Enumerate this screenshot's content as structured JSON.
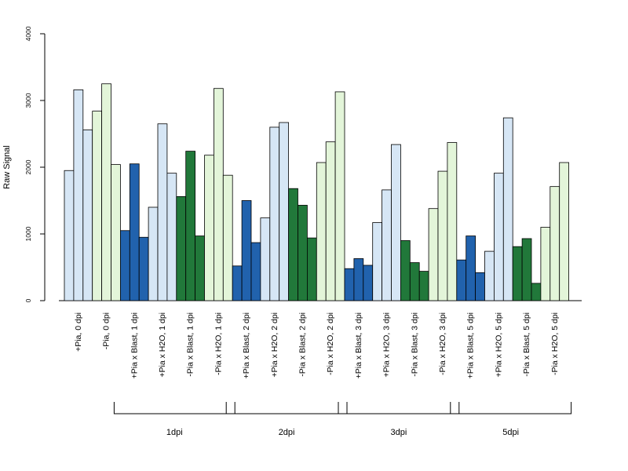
{
  "chart_data": {
    "type": "bar",
    "title": "",
    "xlabel": "",
    "ylabel": "Raw Signal",
    "ylim": [
      0,
      4000
    ],
    "yticks": [
      0,
      1000,
      2000,
      3000,
      4000
    ],
    "grid": false,
    "legend": "none",
    "colors": {
      "plus_pia_blast": "#2162ad",
      "plus_pia_h2o": "#d6e6f5",
      "minus_pia_blast": "#21783a",
      "minus_pia_h2o": "#e3f5d9"
    },
    "categories": [
      {
        "label": "+Pia, 0 dpi",
        "color": "plus_pia_h2o",
        "values": [
          1950,
          3160,
          2560
        ]
      },
      {
        "label": "-Pia, 0 dpi",
        "color": "minus_pia_h2o",
        "values": [
          2840,
          3250,
          2040
        ]
      },
      {
        "label": "+Pia x Blast, 1 dpi",
        "color": "plus_pia_blast",
        "values": [
          1050,
          2050,
          950
        ]
      },
      {
        "label": "+Pia x H2O, 1 dpi",
        "color": "plus_pia_h2o",
        "values": [
          1400,
          2650,
          1910
        ]
      },
      {
        "label": "-Pia x Blast, 1 dpi",
        "color": "minus_pia_blast",
        "values": [
          1560,
          2240,
          970
        ]
      },
      {
        "label": "-Pia x H2O, 1 dpi",
        "color": "minus_pia_h2o",
        "values": [
          2180,
          3180,
          1880
        ]
      },
      {
        "label": "+Pia x Blast, 2 dpi",
        "color": "plus_pia_blast",
        "values": [
          520,
          1500,
          870
        ]
      },
      {
        "label": "+Pia x H2O, 2 dpi",
        "color": "plus_pia_h2o",
        "values": [
          1240,
          2600,
          2670
        ]
      },
      {
        "label": "-Pia x Blast, 2 dpi",
        "color": "minus_pia_blast",
        "values": [
          1680,
          1430,
          940
        ]
      },
      {
        "label": "-Pia x H2O, 2 dpi",
        "color": "minus_pia_h2o",
        "values": [
          2070,
          2380,
          3130
        ]
      },
      {
        "label": "+Pia x Blast, 3 dpi",
        "color": "plus_pia_blast",
        "values": [
          480,
          630,
          530
        ]
      },
      {
        "label": "+Pia x H2O, 3 dpi",
        "color": "plus_pia_h2o",
        "values": [
          1170,
          1660,
          2340
        ]
      },
      {
        "label": "-Pia x Blast, 3 dpi",
        "color": "minus_pia_blast",
        "values": [
          900,
          570,
          440
        ]
      },
      {
        "label": "-Pia x H2O, 3 dpi",
        "color": "minus_pia_h2o",
        "values": [
          1380,
          1940,
          2370
        ]
      },
      {
        "label": "+Pia x Blast, 5 dpi",
        "color": "plus_pia_blast",
        "values": [
          610,
          970,
          420
        ]
      },
      {
        "label": "+Pia x H2O, 5 dpi",
        "color": "plus_pia_h2o",
        "values": [
          740,
          1910,
          2740
        ]
      },
      {
        "label": "-Pia x Blast, 5 dpi",
        "color": "minus_pia_blast",
        "values": [
          810,
          930,
          260
        ]
      },
      {
        "label": "-Pia x H2O, 5 dpi",
        "color": "minus_pia_h2o",
        "values": [
          1100,
          1710,
          2070
        ]
      }
    ],
    "groups": [
      {
        "label": "1dpi",
        "from": 2,
        "to": 5
      },
      {
        "label": "2dpi",
        "from": 6,
        "to": 9
      },
      {
        "label": "3dpi",
        "from": 10,
        "to": 13
      },
      {
        "label": "5dpi",
        "from": 14,
        "to": 17
      }
    ]
  }
}
